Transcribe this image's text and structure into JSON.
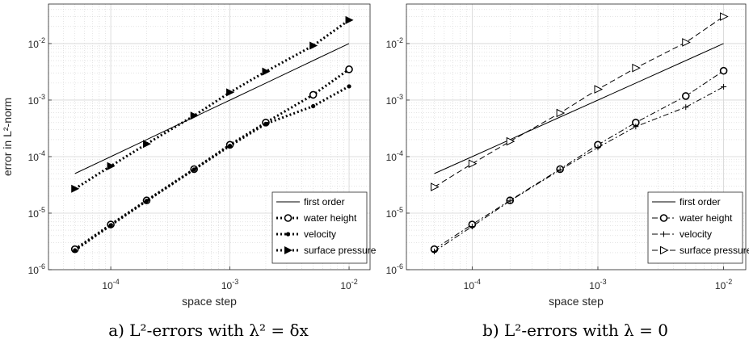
{
  "chart_data": [
    {
      "type": "line",
      "xscale": "log",
      "yscale": "log",
      "xlim": [
        3e-05,
        0.015
      ],
      "ylim": [
        1e-06,
        0.05
      ],
      "xlabel": "space step",
      "ylabel": "error in L²-norm",
      "grid": true,
      "legend_position": "bottom-right",
      "caption": "a) L²-errors with λ² = δx",
      "x": [
        5e-05,
        0.0001,
        0.0002,
        0.0005,
        0.001,
        0.002,
        0.005,
        0.01
      ],
      "series": [
        {
          "name": "first order",
          "style": "solid",
          "marker": "none",
          "width": 1,
          "values": [
            5e-05,
            0.0001,
            0.0002,
            0.0005,
            0.001,
            0.002,
            0.005,
            0.01
          ]
        },
        {
          "name": "water height",
          "style": "dotted",
          "marker": "circle",
          "width": 3,
          "values": [
            2.3e-06,
            6.3e-06,
            1.68e-05,
            6e-05,
            0.000162,
            0.0004,
            0.00124,
            0.0035
          ]
        },
        {
          "name": "velocity",
          "style": "dotted",
          "marker": "dot",
          "width": 3,
          "values": [
            2.2e-06,
            6.1e-06,
            1.65e-05,
            5.9e-05,
            0.000155,
            0.00038,
            0.00078,
            0.00175
          ]
        },
        {
          "name": "surface pressure",
          "style": "dotted",
          "marker": "triangle-right-filled",
          "width": 3,
          "values": [
            2.7e-05,
            6.8e-05,
            0.000168,
            0.00053,
            0.00137,
            0.0032,
            0.0092,
            0.026
          ]
        }
      ]
    },
    {
      "type": "line",
      "xscale": "log",
      "yscale": "log",
      "xlim": [
        3e-05,
        0.015
      ],
      "ylim": [
        1e-06,
        0.05
      ],
      "xlabel": "space step",
      "ylabel": "",
      "grid": true,
      "legend_position": "bottom-right",
      "caption": "b) L²-errors with λ = 0",
      "x": [
        5e-05,
        0.0001,
        0.0002,
        0.0005,
        0.001,
        0.002,
        0.005,
        0.01
      ],
      "series": [
        {
          "name": "first order",
          "style": "solid",
          "marker": "none",
          "width": 1,
          "values": [
            5e-05,
            0.0001,
            0.0002,
            0.0005,
            0.001,
            0.002,
            0.005,
            0.01
          ]
        },
        {
          "name": "water height",
          "style": "dash-dot",
          "marker": "circle",
          "width": 1,
          "values": [
            2.3e-06,
            6.3e-06,
            1.68e-05,
            6e-05,
            0.000162,
            0.0004,
            0.00118,
            0.0033
          ]
        },
        {
          "name": "velocity",
          "style": "dash-dot",
          "marker": "plus",
          "width": 1,
          "values": [
            2.1e-06,
            5.8e-06,
            1.65e-05,
            5.8e-05,
            0.000145,
            0.00034,
            0.00075,
            0.00172
          ]
        },
        {
          "name": "surface pressure",
          "style": "dashed",
          "marker": "triangle-right-open",
          "width": 1,
          "values": [
            2.9e-05,
            7.5e-05,
            0.000186,
            0.00059,
            0.00155,
            0.0037,
            0.0105,
            0.03
          ]
        }
      ]
    }
  ],
  "ticks": {
    "x": [
      {
        "value": 0.0001,
        "label_base": "10",
        "label_exp": "-4"
      },
      {
        "value": 0.001,
        "label_base": "10",
        "label_exp": "-3"
      },
      {
        "value": 0.01,
        "label_base": "10",
        "label_exp": "-2"
      }
    ],
    "y": [
      {
        "value": 1e-06,
        "label_base": "10",
        "label_exp": "-6"
      },
      {
        "value": 1e-05,
        "label_base": "10",
        "label_exp": "-5"
      },
      {
        "value": 0.0001,
        "label_base": "10",
        "label_exp": "-4"
      },
      {
        "value": 0.001,
        "label_base": "10",
        "label_exp": "-3"
      },
      {
        "value": 0.01,
        "label_base": "10",
        "label_exp": "-2"
      }
    ]
  },
  "colors": {
    "lines": "#000000",
    "grid": "#d4d4d4",
    "axes": "#262626"
  }
}
